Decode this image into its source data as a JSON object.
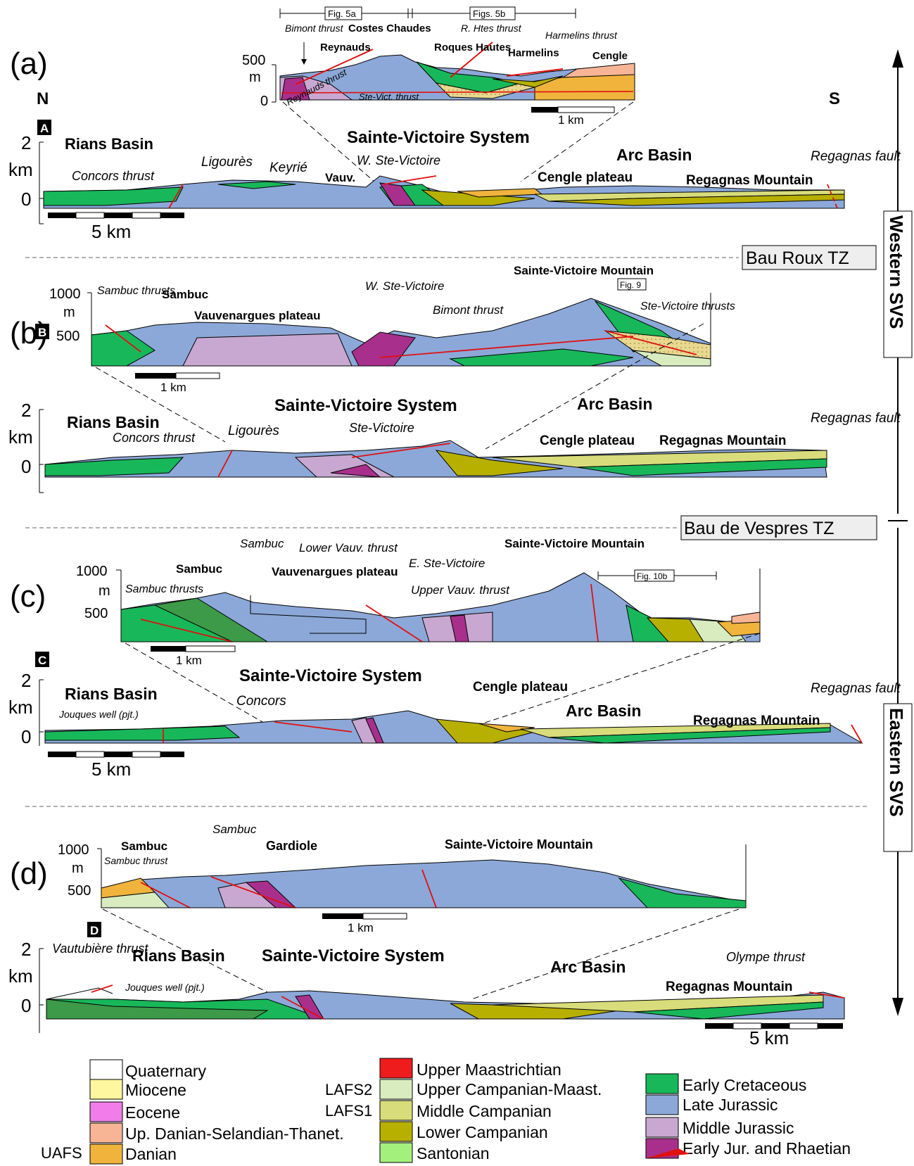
{
  "panels": {
    "a": {
      "panel_label": "(a)",
      "box_letter": "A",
      "north": "N",
      "south": "S",
      "inset": {
        "y_ticks": [
          "500",
          "m",
          "0"
        ],
        "fig_refs": [
          "Fig. 5a",
          "Figs. 5b"
        ],
        "scale": "1 km",
        "labels": [
          "Bimont thrust",
          "Reynauds",
          "Costes Chaudes",
          "Roques Hautes",
          "R. Htes thrust",
          "Harmelins",
          "Harmelins thrust",
          "Cengle",
          "Reynauds thrust",
          "Ste-Vict. thrust"
        ]
      },
      "main": {
        "y_ticks": [
          "2",
          "km",
          "0"
        ],
        "scale": "5 km",
        "labels": [
          "Rians Basin",
          "Concors thrust",
          "Ligourès",
          "Keyrié",
          "Vauv.",
          "W. Ste-Victoire",
          "Sainte-Victoire System",
          "Arc Basin",
          "Cengle plateau",
          "Regagnas Mountain",
          "Regagnas fault"
        ]
      }
    },
    "tz1": "Bau Roux TZ",
    "b": {
      "panel_label": "(b)",
      "box_letter": "B",
      "inset": {
        "y_ticks": [
          "1000",
          "m",
          "500"
        ],
        "fig_ref": "Fig. 9",
        "scale": "1 km",
        "labels": [
          "Sambuc thrusts",
          "Sambuc",
          "Vauvenargues plateau",
          "W. Ste-Victoire",
          "Bimont thrust",
          "Sainte-Victoire Mountain",
          "Ste-Victoire thrusts"
        ]
      },
      "main": {
        "y_ticks": [
          "2",
          "km",
          "0"
        ],
        "labels": [
          "Rians Basin",
          "Concors thrust",
          "Ligourès",
          "Sainte-Victoire System",
          "Ste-Victoire",
          "Arc Basin",
          "Cengle plateau",
          "Regagnas Mountain",
          "Regagnas fault"
        ]
      }
    },
    "tz2": "Bau de Vespres TZ",
    "c": {
      "panel_label": "(c)",
      "box_letter": "C",
      "inset": {
        "y_ticks": [
          "1000",
          "m",
          "500"
        ],
        "fig_ref": "Fig. 10b",
        "scale": "1 km",
        "labels": [
          "Sambuc thrusts",
          "Sambuc",
          "Sambuc",
          "Lower Vauv. thrust",
          "Vauvenargues plateau",
          "E. Ste-Victoire",
          "Upper Vauv. thrust",
          "Sainte-Victoire Mountain"
        ]
      },
      "main": {
        "y_ticks": [
          "2",
          "km",
          "0"
        ],
        "scale": "5 km",
        "labels": [
          "Rians Basin",
          "Jouques well (pjt.)",
          "Concors",
          "Sainte-Victoire System",
          "Cengle plateau",
          "Arc Basin",
          "Regagnas Mountain",
          "Regagnas fault"
        ]
      }
    },
    "d": {
      "panel_label": "(d)",
      "box_letter": "D",
      "inset": {
        "y_ticks": [
          "1000",
          "m",
          "500"
        ],
        "scale": "1 km",
        "labels": [
          "Sambuc",
          "Sambuc thrust",
          "Sambuc",
          "Gardiole",
          "Sainte-Victoire Mountain"
        ]
      },
      "main": {
        "y_ticks": [
          "2",
          "km",
          "0"
        ],
        "scale": "5 km",
        "labels": [
          "Vautubière thrust",
          "Rians Basin",
          "Jouques well (pjt.)",
          "Sainte-Victoire System",
          "Arc Basin",
          "Olympe thrust",
          "Regagnas Mountain"
        ]
      }
    }
  },
  "side_labels": {
    "western": "Western SVS",
    "eastern": "Eastern SVS"
  },
  "legend": {
    "col1": [
      {
        "label": "Quaternary",
        "color": "#ffffff"
      },
      {
        "label": "Miocene",
        "color": "#fff6a0"
      },
      {
        "label": "Eocene",
        "color": "#f07de8"
      },
      {
        "label": "Up. Danian-Selandian-Thanet.",
        "color": "#f7b596"
      },
      {
        "label": "Danian",
        "color": "#f0b43c"
      }
    ],
    "col1_side": [
      "UAFS"
    ],
    "col2": [
      {
        "label": "Upper Maastrichtian",
        "color": "#ee1c1c"
      },
      {
        "label": "Upper Campanian-Maast.",
        "color": "#d8ecc0"
      },
      {
        "label": "Middle Campanian",
        "color": "#d8dc7a"
      },
      {
        "label": "Lower Campanian",
        "color": "#b8b000"
      },
      {
        "label": "Santonian",
        "color": "#a4f07c"
      }
    ],
    "col2_side": [
      "LAFS2",
      "LAFS1"
    ],
    "col3": [
      {
        "label": "Early Cretaceous",
        "color": "#18b85a"
      },
      {
        "label": "Late Jurassic",
        "color": "#8ca8d8"
      },
      {
        "label": "Middle Jurassic",
        "color": "#c8a8d0"
      },
      {
        "label": "Early Jur. and Rhaetian",
        "color": "#a8308c"
      }
    ]
  }
}
